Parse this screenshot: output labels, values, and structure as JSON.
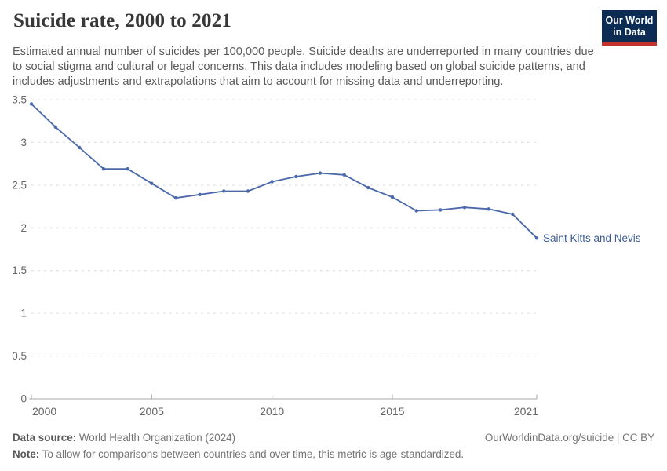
{
  "header": {
    "title": "Suicide rate, 2000 to 2021",
    "subtitle": "Estimated annual number of suicides per 100,000 people. Suicide deaths are underreported in many countries due to social stigma and cultural or legal concerns. This data includes modeling based on global suicide patterns, and includes adjustments and extrapolations that aim to account for missing data and underreporting.",
    "logo": {
      "line1": "Our World",
      "line2": "in Data",
      "bg_color": "#0d2c54",
      "accent_color": "#c5302b"
    }
  },
  "chart_data": {
    "type": "line",
    "title": "Suicide rate, 2000 to 2021",
    "xlabel": "",
    "ylabel": "",
    "xlim": [
      2000,
      2021
    ],
    "ylim": [
      0,
      3.5
    ],
    "xticks": [
      2000,
      2005,
      2010,
      2015,
      2021
    ],
    "yticks": [
      0,
      0.5,
      1,
      1.5,
      2,
      2.5,
      3,
      3.5
    ],
    "grid": "horizontal-dashed",
    "legend_position": "end-of-line-label",
    "grid_color": "#dcdcdc",
    "axis_color": "#a7a7a7",
    "tick_label_color": "#666666",
    "series": [
      {
        "name": "Saint Kitts and Nevis",
        "color": "#4b69aa",
        "label_color": "#3d5c96",
        "x": [
          2000,
          2001,
          2002,
          2003,
          2004,
          2005,
          2006,
          2007,
          2008,
          2009,
          2010,
          2011,
          2012,
          2013,
          2014,
          2015,
          2016,
          2017,
          2018,
          2019,
          2020,
          2021
        ],
        "values": [
          3.45,
          3.18,
          2.94,
          2.69,
          2.69,
          2.52,
          2.35,
          2.39,
          2.43,
          2.43,
          2.54,
          2.6,
          2.64,
          2.62,
          2.47,
          2.36,
          2.2,
          2.21,
          2.24,
          2.22,
          2.16,
          1.88
        ]
      }
    ]
  },
  "footer": {
    "datasource_label": "Data source:",
    "datasource_text": " World Health Organization (2024)",
    "link": "OurWorldinData.org/suicide | CC BY",
    "note_label": "Note:",
    "note_text": " To allow for comparisons between countries and over time, this metric is age-standardized."
  }
}
